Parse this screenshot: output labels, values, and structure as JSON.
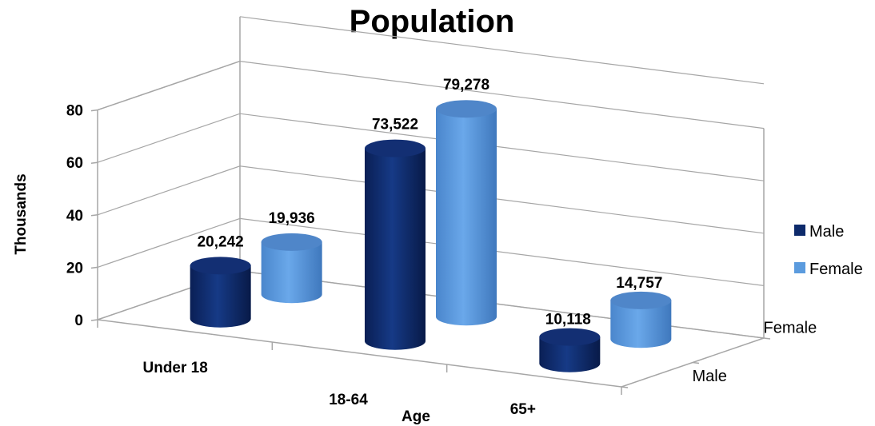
{
  "chart_data": {
    "type": "bar",
    "subtype": "3d-cylinder",
    "title": "Population",
    "xlabel": "Age",
    "ylabel": "Thousands",
    "categories": [
      "Under 18",
      "18-64",
      "65+"
    ],
    "series": [
      {
        "name": "Male",
        "values": [
          20242,
          73522,
          10118
        ],
        "labels": [
          "20,242",
          "73,522",
          "10,118"
        ],
        "color": "#0d2a6b"
      },
      {
        "name": "Female",
        "values": [
          19936,
          79278,
          14757
        ],
        "labels": [
          "19,936",
          "79,278",
          "14,757"
        ],
        "color": "#5b9bde"
      }
    ],
    "depth_labels": [
      "Male",
      "Female"
    ],
    "yticks": [
      "0",
      "20",
      "40",
      "60",
      "80"
    ],
    "ylim": [
      0,
      80
    ],
    "grid": true,
    "legend_position": "right"
  }
}
